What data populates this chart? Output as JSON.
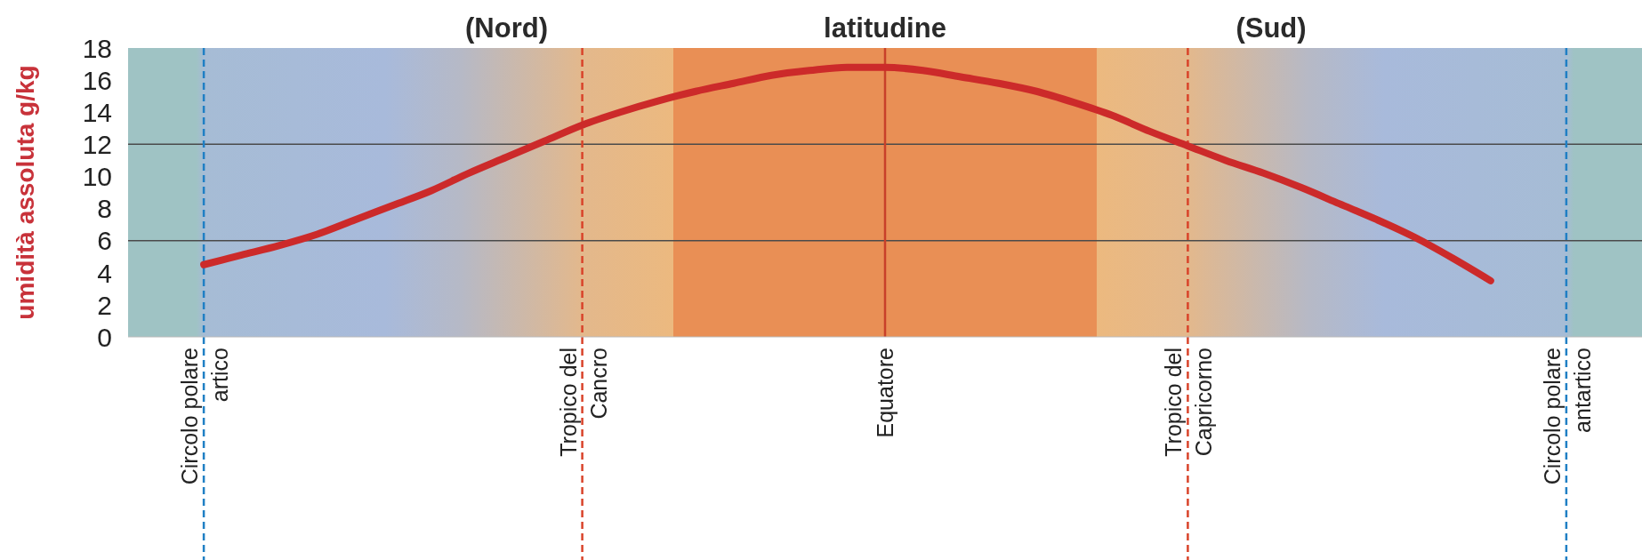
{
  "chart_data": {
    "type": "line",
    "xlabel": "latitudine",
    "ylabel": "umidità assoluta g/kg",
    "annotations": [
      "(Nord)",
      "(Sud)"
    ],
    "categories": [
      null,
      null,
      "Circolo polare\nartico",
      null,
      null,
      null,
      null,
      null,
      null,
      null,
      null,
      null,
      "Tropico del\nCancro",
      null,
      null,
      null,
      null,
      null,
      null,
      null,
      "Equatore",
      null,
      null,
      null,
      null,
      null,
      null,
      null,
      "Tropico del\nCapricorno",
      null,
      null,
      null,
      null,
      null,
      null,
      null,
      null,
      null,
      "Circolo polare\nantartico",
      null,
      null
    ],
    "series": [
      {
        "color": "#cc2a2a",
        "values": [
          null,
          null,
          4.5,
          5.1,
          5.7,
          6.4,
          7.3,
          8.2,
          9.1,
          10.2,
          11.2,
          12.2,
          13.2,
          14.0,
          14.7,
          15.3,
          15.8,
          16.3,
          16.6,
          16.8,
          16.8,
          16.6,
          16.2,
          15.8,
          15.3,
          14.6,
          13.8,
          12.8,
          11.9,
          11.0,
          10.2,
          9.3,
          8.3,
          7.3,
          6.2,
          4.9,
          3.5,
          null,
          null,
          null,
          null
        ]
      }
    ],
    "ylim": [
      0,
      18
    ],
    "yticks": [
      0,
      2,
      4,
      6,
      8,
      10,
      12,
      14,
      16,
      18
    ],
    "marker": "none",
    "line_style": "solid",
    "ref_lines": [
      {
        "axis": "y",
        "value": 6,
        "color": "#4a4a4a",
        "line_style": "solid"
      },
      {
        "axis": "y",
        "value": 12,
        "color": "#4a4a4a",
        "line_style": "solid"
      },
      {
        "axis": "x",
        "value": "Circolo polare\nartico",
        "color": "#1f7fc4",
        "line_style": "dashed"
      },
      {
        "axis": "x",
        "value": "Tropico del\nCancro",
        "color": "#d9432a",
        "line_style": "dashed"
      },
      {
        "axis": "x",
        "value": "Equatore",
        "color": "#c8402a",
        "line_style": "solid"
      },
      {
        "axis": "x",
        "value": "Tropico del\nCapricorno",
        "color": "#d9432a",
        "line_style": "dashed"
      },
      {
        "axis": "x",
        "value": "Circolo polare\nantartico",
        "color": "#1f7fc4",
        "line_style": "dashed"
      }
    ]
  }
}
